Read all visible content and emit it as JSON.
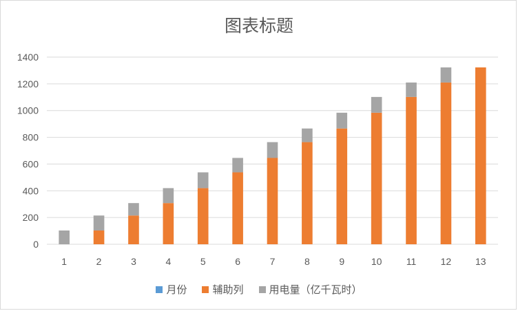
{
  "chart_data": {
    "type": "bar",
    "stacked": true,
    "title": "图表标题",
    "categories": [
      "1",
      "2",
      "3",
      "4",
      "5",
      "6",
      "7",
      "8",
      "9",
      "10",
      "11",
      "12",
      "13"
    ],
    "series": [
      {
        "name": "月份",
        "color": "#5B9BD5",
        "values": [
          0,
          0,
          0,
          0,
          0,
          0,
          0,
          0,
          0,
          0,
          0,
          0,
          0
        ]
      },
      {
        "name": "辅助列",
        "color": "#ED7D31",
        "values": [
          0,
          103,
          215,
          308,
          420,
          538,
          646,
          764,
          866,
          984,
          1102,
          1210,
          1323
        ]
      },
      {
        "name": "用电量（亿千瓦时）",
        "color": "#A5A5A5",
        "values": [
          103,
          112,
          93,
          112,
          118,
          108,
          118,
          102,
          118,
          118,
          108,
          113,
          0
        ]
      }
    ],
    "ylim": [
      0,
      1400
    ],
    "yticks": [
      0,
      200,
      400,
      600,
      800,
      1000,
      1200,
      1400
    ],
    "grid": true,
    "legend_position": "bottom",
    "xlabel": "",
    "ylabel": ""
  }
}
